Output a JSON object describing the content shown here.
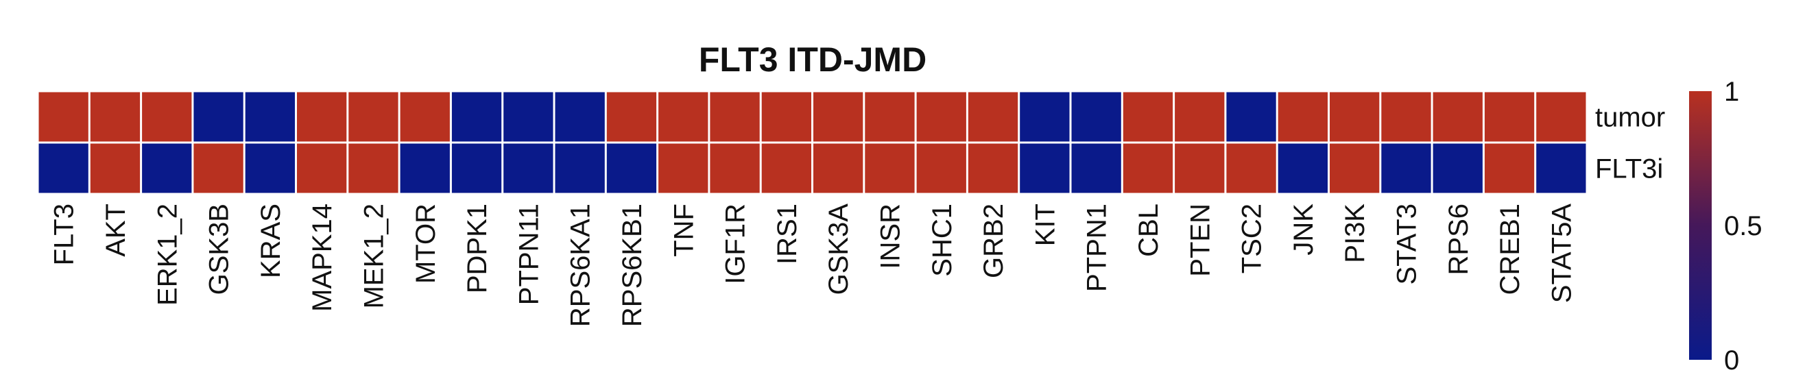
{
  "chart_data": {
    "type": "heatmap",
    "title": "FLT3 ITD-JMD",
    "columns": [
      "FLT3",
      "AKT",
      "ERK1_2",
      "GSK3B",
      "KRAS",
      "MAPK14",
      "MEK1_2",
      "MTOR",
      "PDPK1",
      "PTPN11",
      "RPS6KA1",
      "RPS6KB1",
      "TNF",
      "IGF1R",
      "IRS1",
      "GSK3A",
      "INSR",
      "SHC1",
      "GRB2",
      "KIT",
      "PTPN1",
      "CBL",
      "PTEN",
      "TSC2",
      "JNK",
      "PI3K",
      "STAT3",
      "RPS6",
      "CREB1",
      "STAT5A"
    ],
    "rows": [
      "tumor",
      "FLT3i"
    ],
    "values": [
      [
        1,
        1,
        1,
        0,
        0,
        1,
        1,
        1,
        0,
        0,
        0,
        1,
        1,
        1,
        1,
        1,
        1,
        1,
        1,
        0,
        0,
        1,
        1,
        0,
        1,
        1,
        1,
        1,
        1,
        1
      ],
      [
        0,
        1,
        0,
        1,
        0,
        1,
        1,
        0,
        0,
        0,
        0,
        0,
        1,
        1,
        1,
        1,
        1,
        1,
        1,
        0,
        0,
        1,
        1,
        1,
        0,
        1,
        0,
        0,
        1,
        0
      ]
    ],
    "colorbar": {
      "range": [
        0,
        1
      ],
      "ticks": [
        "1",
        "0.5",
        "0"
      ],
      "low_color": "#0a1a8a",
      "high_color": "#b83120"
    },
    "xlabel": "",
    "ylabel": ""
  }
}
